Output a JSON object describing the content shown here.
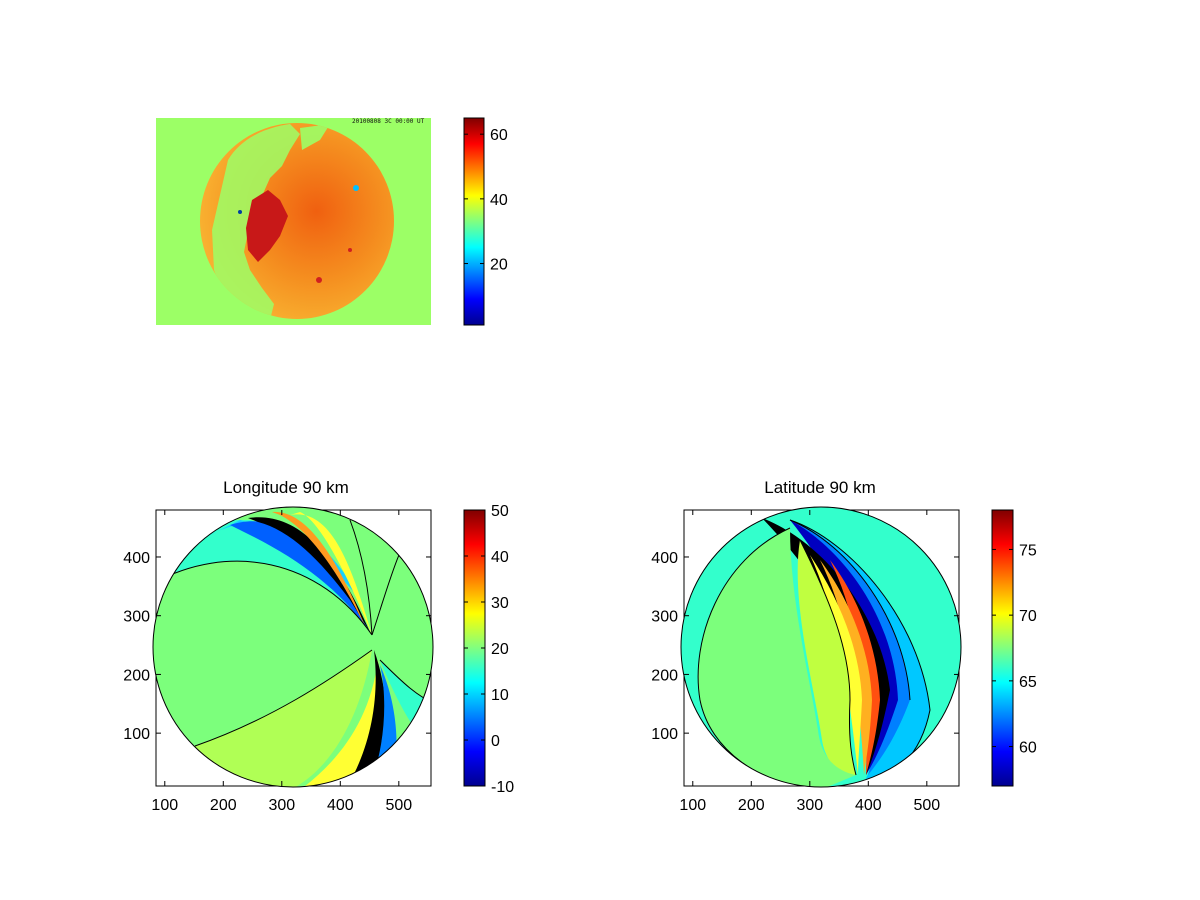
{
  "colors": {
    "jet": [
      "#00008f",
      "#0000ff",
      "#0080ff",
      "#00ffff",
      "#80ff80",
      "#ffff00",
      "#ff8000",
      "#ff0000",
      "#800000"
    ]
  },
  "chart_data": [
    {
      "type": "heatmap",
      "title": "",
      "image_label": "20100808 3C 00:00 UT",
      "colorbar": {
        "range": [
          1,
          65
        ],
        "ticks": [
          20,
          40,
          60
        ]
      }
    },
    {
      "type": "heatmap",
      "title": "Longitude 90 km",
      "xlim": [
        85,
        555
      ],
      "ylim": [
        10,
        480
      ],
      "xticks": [
        100,
        200,
        300,
        400,
        500
      ],
      "yticks": [
        100,
        200,
        300,
        400
      ],
      "colorbar": {
        "range": [
          -10,
          50
        ],
        "ticks": [
          -10,
          0,
          10,
          20,
          30,
          40,
          50
        ]
      }
    },
    {
      "type": "heatmap",
      "title": "Latitude 90 km",
      "xlim": [
        85,
        555
      ],
      "ylim": [
        10,
        480
      ],
      "xticks": [
        100,
        200,
        300,
        400,
        500
      ],
      "yticks": [
        100,
        200,
        300,
        400
      ],
      "colorbar": {
        "range": [
          57,
          78
        ],
        "ticks": [
          60,
          65,
          70,
          75
        ]
      }
    }
  ]
}
